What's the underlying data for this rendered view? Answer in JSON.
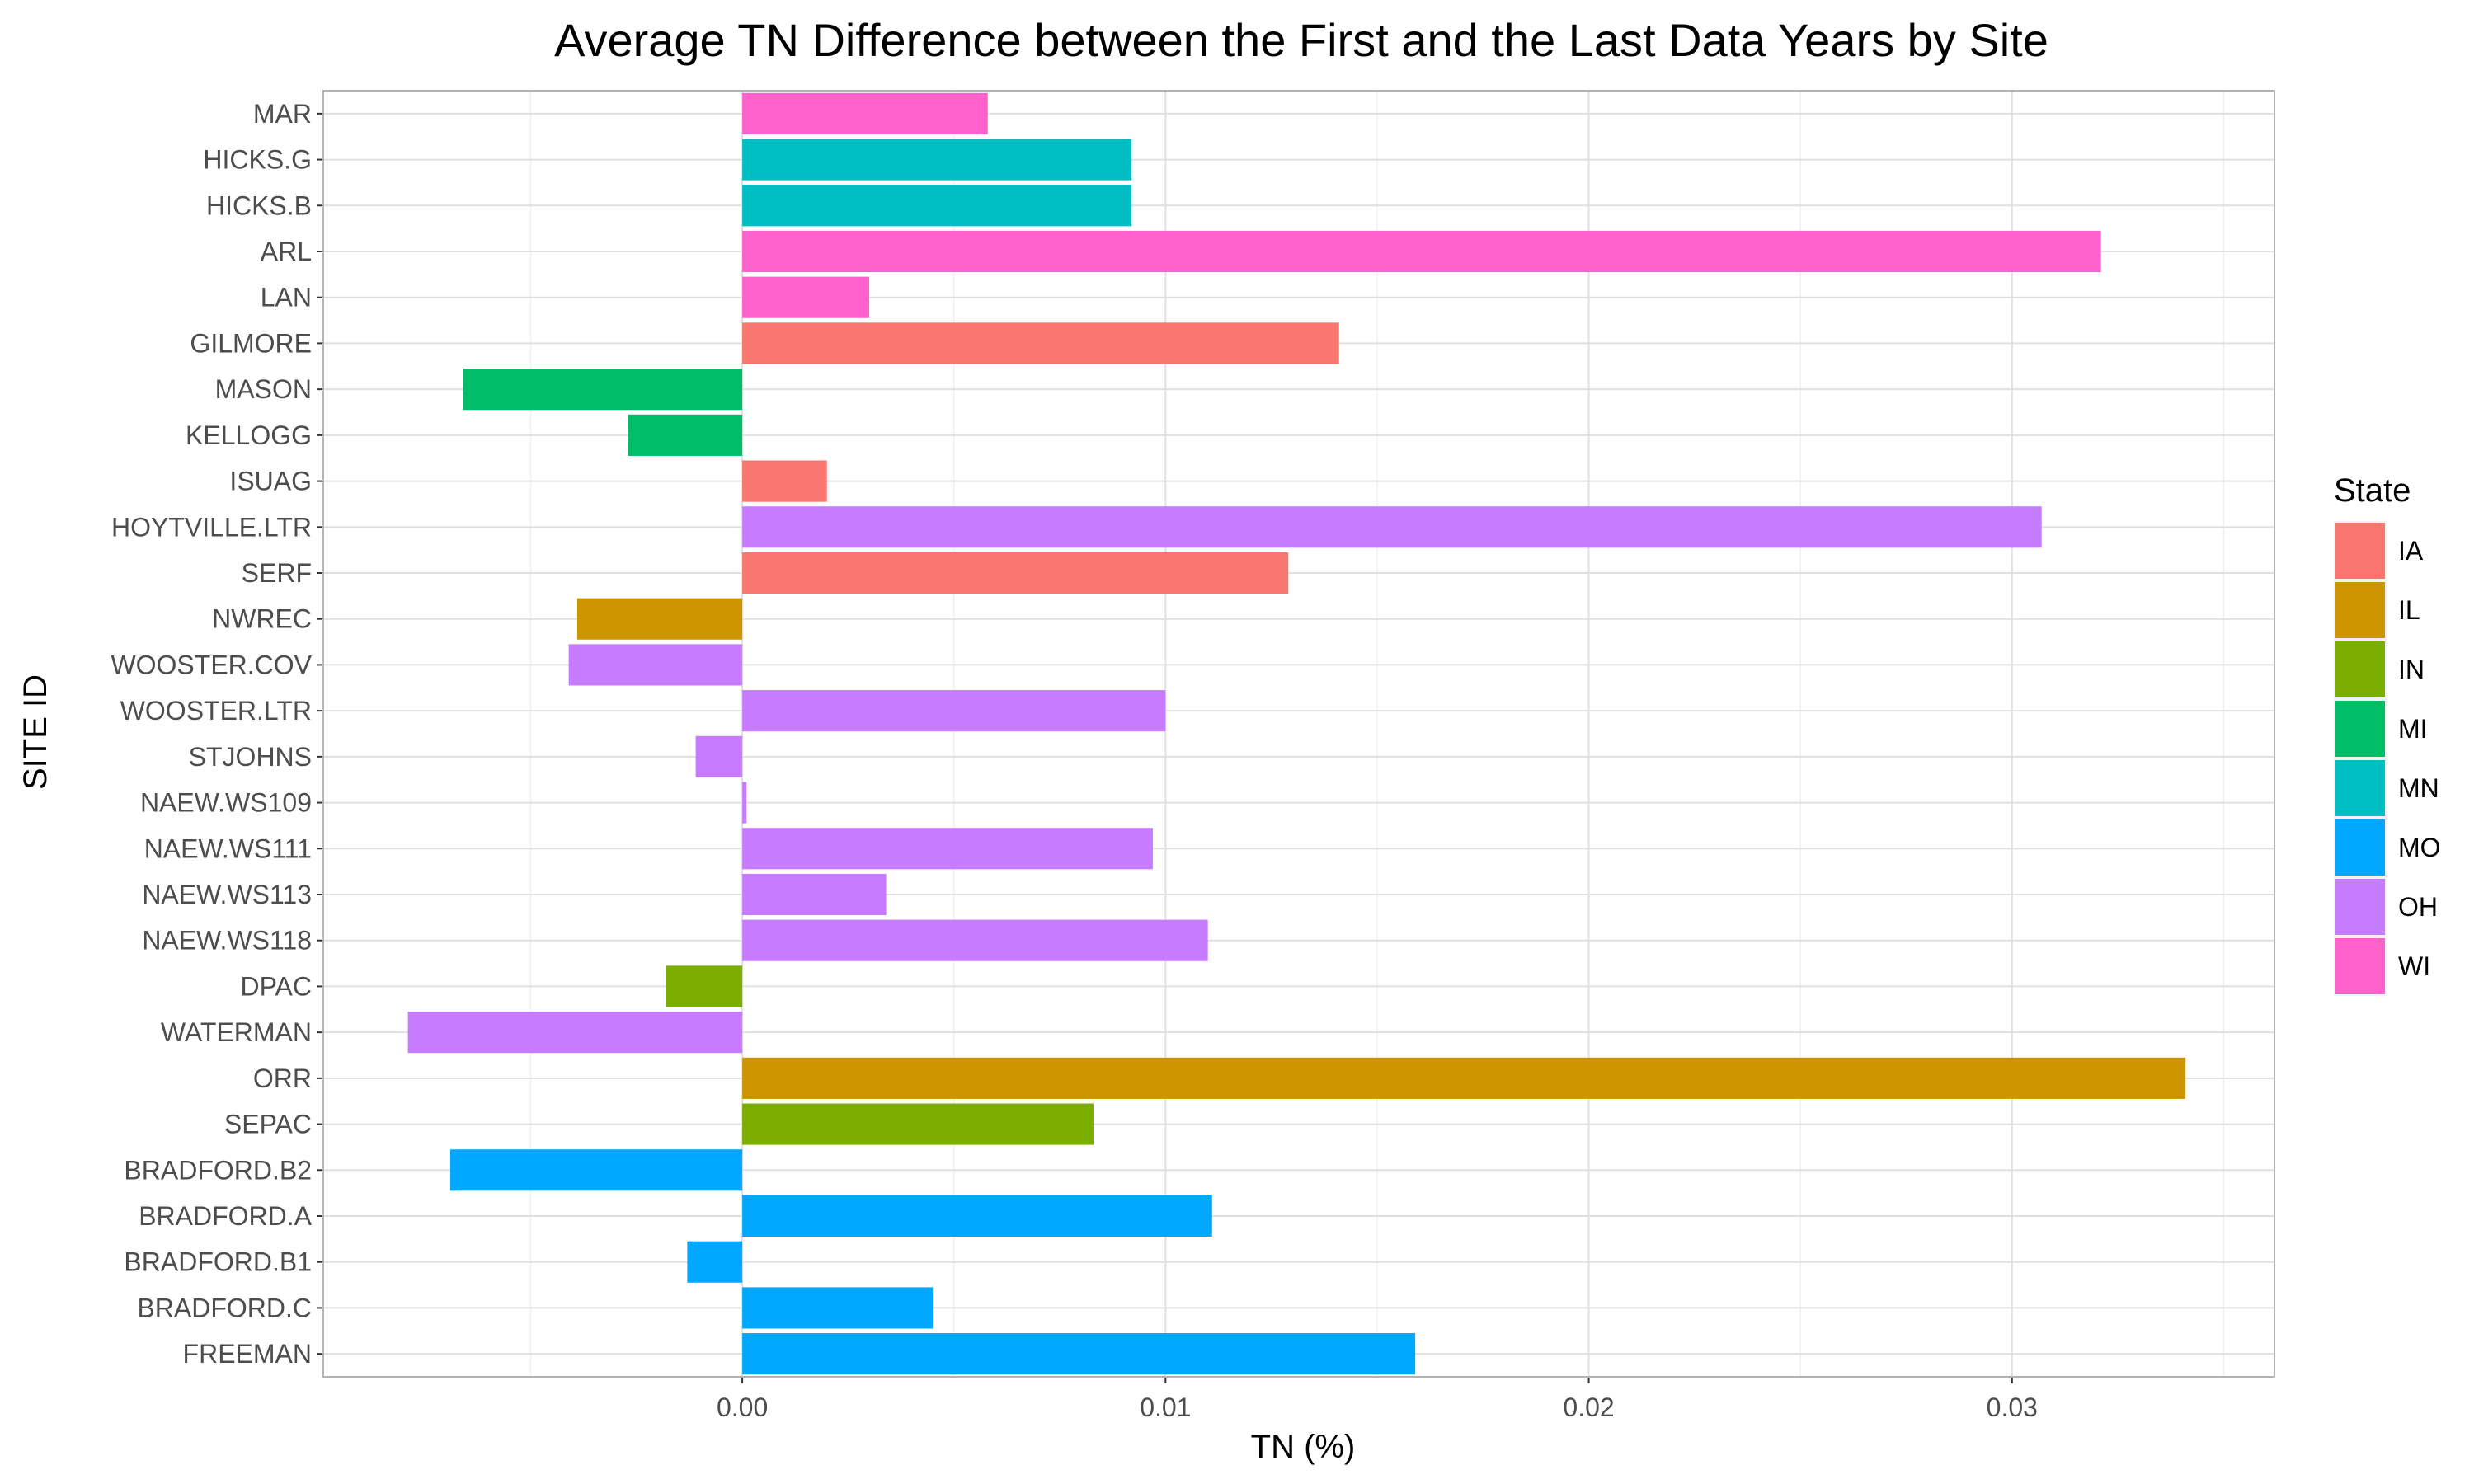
{
  "chart_data": {
    "type": "bar",
    "orientation": "horizontal",
    "title": "Average TN Difference between the First and the Last Data Years by Site",
    "xlabel": "TN (%)",
    "ylabel": "SITE ID",
    "xlim": [
      -0.0099,
      0.0362
    ],
    "xticks": [
      {
        "value": 0.0,
        "label": "0.00"
      },
      {
        "value": 0.01,
        "label": "0.01"
      },
      {
        "value": 0.02,
        "label": "0.02"
      },
      {
        "value": 0.03,
        "label": "0.03"
      }
    ],
    "grid": true,
    "legend": {
      "title": "State",
      "placement": "right",
      "entries": [
        {
          "label": "IA",
          "color": "#F8766D"
        },
        {
          "label": "IL",
          "color": "#CD9600"
        },
        {
          "label": "IN",
          "color": "#7CAE00"
        },
        {
          "label": "MI",
          "color": "#00BE67"
        },
        {
          "label": "MN",
          "color": "#00BFC4"
        },
        {
          "label": "MO",
          "color": "#00A9FF"
        },
        {
          "label": "OH",
          "color": "#C77CFF"
        },
        {
          "label": "WI",
          "color": "#FF61CC"
        }
      ]
    },
    "bars": [
      {
        "site": "MAR",
        "value": 0.0058,
        "state": "WI"
      },
      {
        "site": "HICKS.G",
        "value": 0.0092,
        "state": "MN"
      },
      {
        "site": "HICKS.B",
        "value": 0.0092,
        "state": "MN"
      },
      {
        "site": "ARL",
        "value": 0.0321,
        "state": "WI"
      },
      {
        "site": "LAN",
        "value": 0.003,
        "state": "WI"
      },
      {
        "site": "GILMORE",
        "value": 0.0141,
        "state": "IA"
      },
      {
        "site": "MASON",
        "value": -0.0066,
        "state": "MI"
      },
      {
        "site": "KELLOGG",
        "value": -0.0027,
        "state": "MI"
      },
      {
        "site": "ISUAG",
        "value": 0.002,
        "state": "IA"
      },
      {
        "site": "HOYTVILLE.LTR",
        "value": 0.0307,
        "state": "OH"
      },
      {
        "site": "SERF",
        "value": 0.0129,
        "state": "IA"
      },
      {
        "site": "NWREC",
        "value": -0.0039,
        "state": "IL"
      },
      {
        "site": "WOOSTER.COV",
        "value": -0.0041,
        "state": "OH"
      },
      {
        "site": "WOOSTER.LTR",
        "value": 0.01,
        "state": "OH"
      },
      {
        "site": "STJOHNS",
        "value": -0.0011,
        "state": "OH"
      },
      {
        "site": "NAEW.WS109",
        "value": 0.0001,
        "state": "OH"
      },
      {
        "site": "NAEW.WS111",
        "value": 0.0097,
        "state": "OH"
      },
      {
        "site": "NAEW.WS113",
        "value": 0.0034,
        "state": "OH"
      },
      {
        "site": "NAEW.WS118",
        "value": 0.011,
        "state": "OH"
      },
      {
        "site": "DPAC",
        "value": -0.0018,
        "state": "IN"
      },
      {
        "site": "WATERMAN",
        "value": -0.0079,
        "state": "OH"
      },
      {
        "site": "ORR",
        "value": 0.0341,
        "state": "IL"
      },
      {
        "site": "SEPAC",
        "value": 0.0083,
        "state": "IN"
      },
      {
        "site": "BRADFORD.B2",
        "value": -0.0069,
        "state": "MO"
      },
      {
        "site": "BRADFORD.A",
        "value": 0.0111,
        "state": "MO"
      },
      {
        "site": "BRADFORD.B1",
        "value": -0.0013,
        "state": "MO"
      },
      {
        "site": "BRADFORD.C",
        "value": 0.0045,
        "state": "MO"
      },
      {
        "site": "FREEMAN",
        "value": 0.0159,
        "state": "MO"
      }
    ]
  }
}
